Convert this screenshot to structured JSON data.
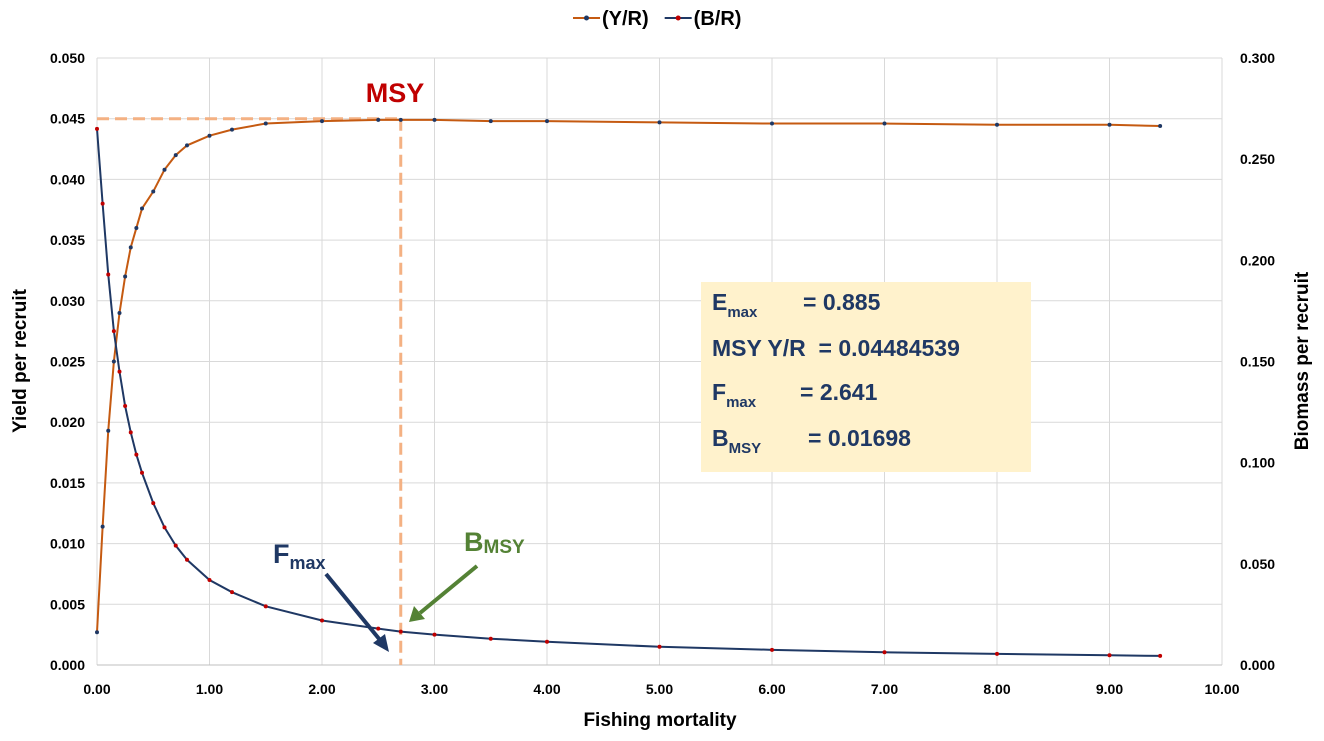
{
  "chart_data": {
    "type": "line",
    "x_label": "Fishing mortality",
    "y_label": "Yield per recruit",
    "y2_label": "Biomass per recruit",
    "x": [
      0,
      0.05,
      0.1,
      0.15,
      0.2,
      0.25,
      0.3,
      0.35,
      0.4,
      0.5,
      0.6,
      0.7,
      0.8,
      1.0,
      1.2,
      1.5,
      2.0,
      2.5,
      2.7,
      3.0,
      3.5,
      4.0,
      5.0,
      6.0,
      7.0,
      8.0,
      9.0,
      9.45
    ],
    "series": [
      {
        "name": "(Y/R)",
        "color": "#c55a11",
        "marker_color": "#1f3864",
        "values": [
          0.0027,
          0.0114,
          0.0193,
          0.025,
          0.029,
          0.032,
          0.0344,
          0.036,
          0.0376,
          0.039,
          0.0408,
          0.042,
          0.0428,
          0.0436,
          0.0441,
          0.0446,
          0.0448,
          0.0449,
          0.0449,
          0.0449,
          0.0448,
          0.0448,
          0.0447,
          0.0446,
          0.0446,
          0.0445,
          0.0445,
          0.0444
        ]
      },
      {
        "name": "(B/R)",
        "color": "#1f3864",
        "marker_color": "#c00000",
        "axis": "y2",
        "values": [
          0.265,
          0.228,
          0.193,
          0.165,
          0.145,
          0.128,
          0.115,
          0.104,
          0.095,
          0.08,
          0.068,
          0.059,
          0.052,
          0.042,
          0.036,
          0.029,
          0.022,
          0.018,
          0.0165,
          0.015,
          0.013,
          0.0115,
          0.009,
          0.0075,
          0.0063,
          0.0055,
          0.0048,
          0.0045
        ]
      }
    ],
    "xlim": [
      0,
      10
    ],
    "xticks": [
      {
        "value": 0,
        "label": "0.00"
      },
      {
        "value": 1,
        "label": "1.00"
      },
      {
        "value": 2,
        "label": "2.00"
      },
      {
        "value": 3,
        "label": "3.00"
      },
      {
        "value": 4,
        "label": "4.00"
      },
      {
        "value": 5,
        "label": "5.00"
      },
      {
        "value": 6,
        "label": "6.00"
      },
      {
        "value": 7,
        "label": "7.00"
      },
      {
        "value": 8,
        "label": "8.00"
      },
      {
        "value": 9,
        "label": "9.00"
      },
      {
        "value": 10,
        "label": "10.00"
      }
    ],
    "ylim": [
      0,
      0.05
    ],
    "yticks": [
      {
        "value": 0,
        "label": "0.000"
      },
      {
        "value": 0.005,
        "label": "0.005"
      },
      {
        "value": 0.01,
        "label": "0.010"
      },
      {
        "value": 0.015,
        "label": "0.015"
      },
      {
        "value": 0.02,
        "label": "0.020"
      },
      {
        "value": 0.025,
        "label": "0.025"
      },
      {
        "value": 0.03,
        "label": "0.030"
      },
      {
        "value": 0.035,
        "label": "0.035"
      },
      {
        "value": 0.04,
        "label": "0.040"
      },
      {
        "value": 0.045,
        "label": "0.045"
      },
      {
        "value": 0.05,
        "label": "0.050"
      }
    ],
    "y2lim": [
      0,
      0.3
    ],
    "y2ticks": [
      {
        "value": 0,
        "label": "0.000"
      },
      {
        "value": 0.05,
        "label": "0.050"
      },
      {
        "value": 0.1,
        "label": "0.100"
      },
      {
        "value": 0.15,
        "label": "0.150"
      },
      {
        "value": 0.2,
        "label": "0.200"
      },
      {
        "value": 0.25,
        "label": "0.250"
      },
      {
        "value": 0.3,
        "label": "0.300"
      }
    ],
    "grid": true,
    "legend": "top",
    "msy_line": {
      "x": 2.7,
      "y": 0.045
    },
    "annotations": {
      "msy": "MSY",
      "fmax": {
        "symbol": "F",
        "sub": "max"
      },
      "bmsy": {
        "symbol": "B",
        "sub": "MSY"
      }
    },
    "info_box": [
      {
        "symbol": "E",
        "sub": "max",
        "text": "= 0.885"
      },
      {
        "text": "MSY Y/R  = 0.04484539"
      },
      {
        "symbol": "F",
        "sub": "max",
        "text": "= 2.641"
      },
      {
        "symbol": "B",
        "sub": "MSY",
        "text": "= 0.01698"
      }
    ]
  }
}
